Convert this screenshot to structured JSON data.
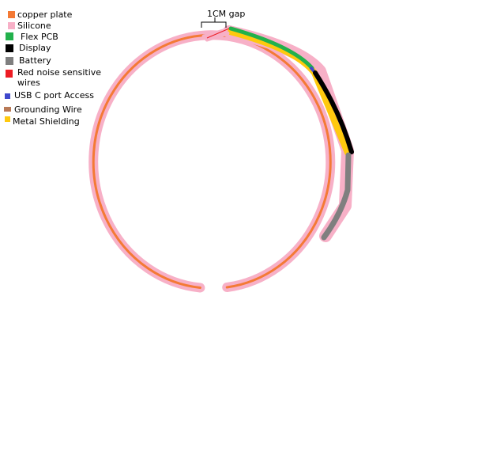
{
  "legend": {
    "items": [
      {
        "label": "copper plate",
        "color": "#f47a35"
      },
      {
        "label": "Silicone",
        "color": "#f7b0c7"
      },
      {
        "label": "Flex PCB",
        "color": "#22b14c"
      },
      {
        "label": "Display",
        "color": "#000000"
      },
      {
        "label": "Battery",
        "color": "#7f7f7f"
      },
      {
        "label": "Red noise sensitive wires",
        "color": "#ed1c24"
      },
      {
        "label": "USB C port Access",
        "color": "#3f48cc"
      },
      {
        "label": "Grounding Wire",
        "color": "#b97a57"
      },
      {
        "label": "Metal Shielding",
        "color": "#ffc90e"
      }
    ]
  },
  "diagram": {
    "gap_label": "1CM gap"
  }
}
